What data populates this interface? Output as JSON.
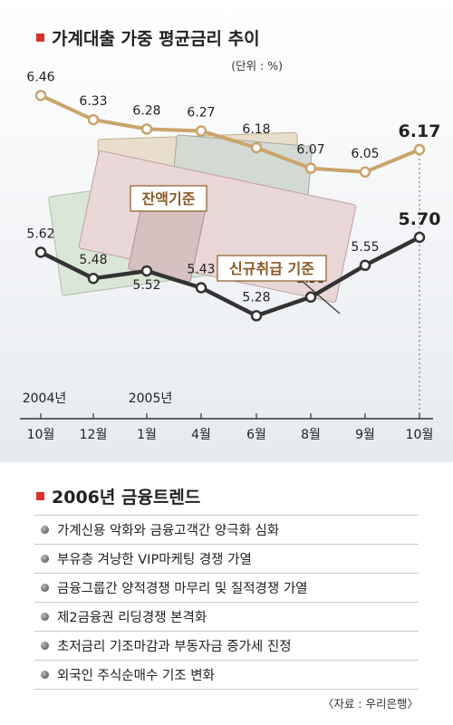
{
  "chart_data": {
    "type": "line",
    "title": "가계대출 가중 평균금리 추이",
    "unit_note": "(단위 : %)",
    "categories": [
      "10월",
      "12월",
      "1월",
      "4월",
      "6월",
      "8월",
      "9월",
      "10월"
    ],
    "year_labels": [
      {
        "label": "2004년",
        "category_index": 0
      },
      {
        "label": "2005년",
        "category_index": 2
      }
    ],
    "series": [
      {
        "name": "잔액기준",
        "color": "#c9a46a",
        "values": [
          6.46,
          6.33,
          6.28,
          6.27,
          6.18,
          6.07,
          6.05,
          6.17
        ]
      },
      {
        "name": "신규취급 기준",
        "color": "#333333",
        "values": [
          5.62,
          5.48,
          5.52,
          5.43,
          5.28,
          5.38,
          5.55,
          5.7
        ]
      }
    ],
    "legend": "inline labels",
    "grid": false
  },
  "trends": {
    "title": "2006년 금융트렌드",
    "items": [
      "가계신용 악화와 금융고객간 양극화 심화",
      "부유층 겨냥한 VIP마케팅 경쟁 가열",
      "금융그룹간 양적경쟁 마무리 및 질적경쟁 가열",
      "제2금융권 리딩경쟁 본격화",
      "초저금리 기조마감과 부동자금 증가세 진정",
      "외국인 주식순매수 기조 변화"
    ]
  },
  "source": "〈자료 : 우리은행〉"
}
